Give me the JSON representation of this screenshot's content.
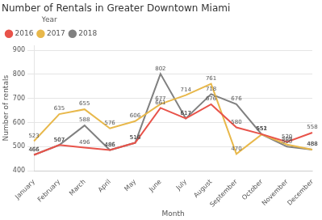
{
  "chart_data": {
    "type": "line",
    "title": "Number of Rentals in Greater Downtown Miami",
    "xlabel": "Month",
    "ylabel": "Number of rentals",
    "categories": [
      "January",
      "February",
      "March",
      "April",
      "May",
      "June",
      "July",
      "August",
      "September",
      "October",
      "November",
      "December"
    ],
    "series": [
      {
        "name": "2016",
        "color": "#e8534a",
        "values": [
          466,
          507,
          496,
          486,
          516,
          661,
          617,
          676,
          580,
          552,
          520,
          558
        ]
      },
      {
        "name": "2017",
        "color": "#e8b84b",
        "values": [
          523,
          635,
          655,
          576,
          606,
          677,
          714,
          761,
          470,
          551,
          509,
          488
        ]
      },
      {
        "name": "2018",
        "color": "#808080",
        "values": [
          466,
          507,
          588,
          486,
          516,
          802,
          617,
          718,
          676,
          551,
          500,
          488
        ]
      }
    ],
    "legend_title": "Year",
    "ylim": [
      400,
      920
    ],
    "yticks": [
      400,
      500,
      600,
      700,
      800,
      900
    ],
    "grid": true,
    "legend": "upper left",
    "data_labels": true
  }
}
